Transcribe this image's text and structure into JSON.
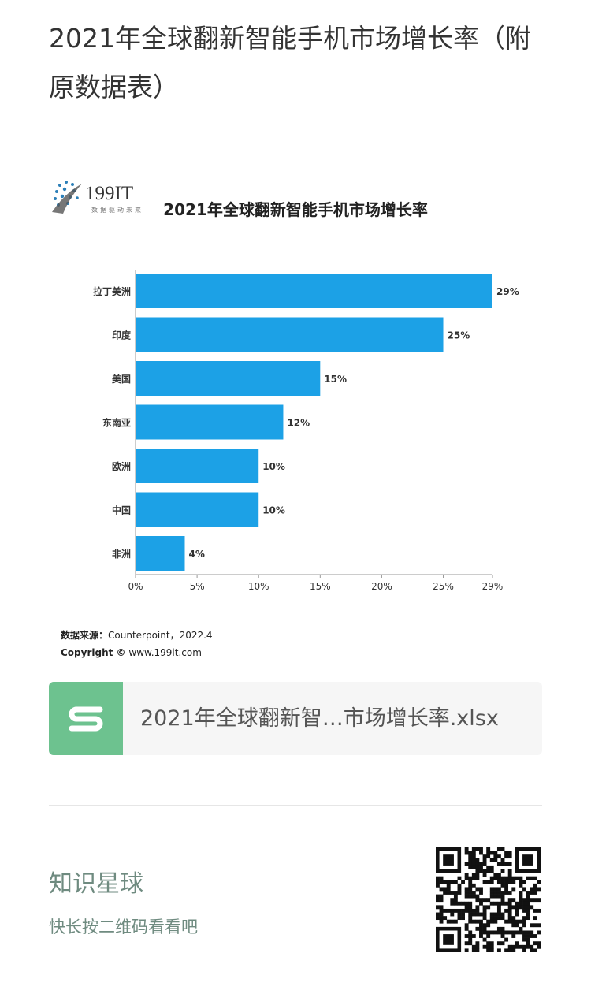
{
  "page": {
    "title": "2021年全球翻新智能手机市场增长率（附原数据表）"
  },
  "chart_data": {
    "type": "bar",
    "orientation": "horizontal",
    "title": "2021年全球翻新智能手机市场增长率",
    "categories": [
      "拉丁美洲",
      "印度",
      "美国",
      "东南亚",
      "欧洲",
      "中国",
      "非洲"
    ],
    "values": [
      29,
      25,
      15,
      12,
      10,
      10,
      4
    ],
    "value_labels": [
      "29%",
      "25%",
      "15%",
      "12%",
      "10%",
      "10%",
      "4%"
    ],
    "xlim": [
      0,
      29
    ],
    "xticks": [
      0,
      5,
      10,
      15,
      20,
      25,
      29
    ],
    "xtick_labels": [
      "0%",
      "5%",
      "10%",
      "15%",
      "20%",
      "25%",
      "29%"
    ],
    "bar_color": "#1ca1e6",
    "grid": false
  },
  "source": {
    "label": "数据来源：",
    "text": "Counterpoint，2022.4",
    "copyright_label": "Copyright ©",
    "copyright_site": "www.199it.com"
  },
  "brand": {
    "name": "199IT",
    "tagline": "数据驱动未来"
  },
  "attachment": {
    "filename": "2021年全球翻新智…市场增长率.xlsx",
    "icon": "spreadsheet-s-icon",
    "icon_color": "#6dc28f"
  },
  "planet": {
    "name": "知识星球",
    "hint": "快长按二维码看看吧",
    "qr_icon": "qr-code-icon"
  }
}
